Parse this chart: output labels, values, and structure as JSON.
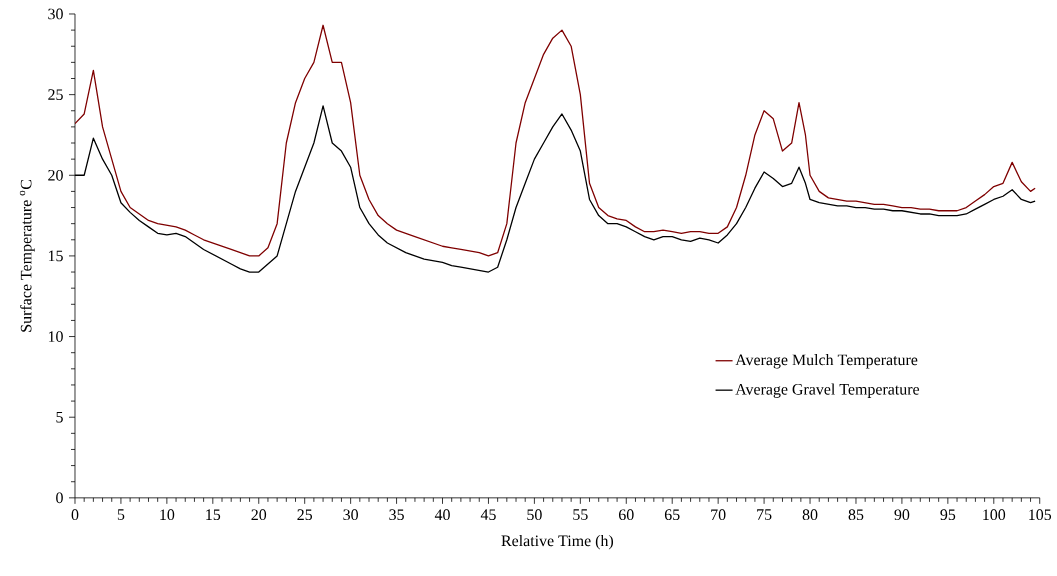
{
  "chart_data": {
    "type": "line",
    "xlabel": "Relative Time (h)",
    "ylabel": "Surface Temperature $^{o}$C",
    "x": [
      0,
      1,
      2,
      3,
      4,
      5,
      6,
      7,
      8,
      9,
      10,
      11,
      12,
      13,
      14,
      15,
      16,
      17,
      18,
      19,
      20,
      21,
      22,
      23,
      24,
      25,
      26,
      27,
      28,
      29,
      30,
      31,
      32,
      33,
      34,
      35,
      36,
      37,
      38,
      39,
      40,
      41,
      42,
      43,
      44,
      45,
      46,
      47,
      48,
      49,
      50,
      51,
      52,
      53,
      54,
      55,
      56,
      57,
      58,
      59,
      60,
      61,
      62,
      63,
      64,
      65,
      66,
      67,
      68,
      69,
      70,
      71,
      72,
      73,
      74,
      75,
      76,
      77,
      78,
      78.8,
      79.5,
      80,
      81,
      82,
      83,
      84,
      85,
      86,
      87,
      88,
      89,
      90,
      91,
      92,
      93,
      94,
      95,
      96,
      97,
      98,
      99,
      100,
      101,
      102,
      103,
      104,
      104.5
    ],
    "series": [
      {
        "name": "Average Mulch Temperature",
        "color": "#7f0000",
        "values": [
          23.2,
          23.8,
          26.5,
          23,
          21,
          19,
          18,
          17.6,
          17.2,
          17,
          16.9,
          16.8,
          16.6,
          16.3,
          16,
          15.8,
          15.6,
          15.4,
          15.2,
          15,
          15,
          15.5,
          17,
          22,
          24.5,
          26,
          27,
          29.3,
          27,
          27,
          24.5,
          20,
          18.5,
          17.5,
          17,
          16.6,
          16.4,
          16.2,
          16,
          15.8,
          15.6,
          15.5,
          15.4,
          15.3,
          15.2,
          15,
          15.2,
          17,
          22,
          24.5,
          26,
          27.5,
          28.5,
          29,
          28,
          25,
          19.5,
          18,
          17.5,
          17.3,
          17.2,
          16.8,
          16.5,
          16.5,
          16.6,
          16.5,
          16.4,
          16.5,
          16.5,
          16.4,
          16.4,
          16.8,
          18,
          20,
          22.5,
          24,
          23.5,
          21.5,
          22,
          24.5,
          22.5,
          20,
          19,
          18.6,
          18.5,
          18.4,
          18.4,
          18.3,
          18.2,
          18.2,
          18.1,
          18,
          18,
          17.9,
          17.9,
          17.8,
          17.8,
          17.8,
          18,
          18.4,
          18.8,
          19.3,
          19.5,
          20.8,
          19.6,
          19,
          19.2
        ]
      },
      {
        "name": "Average Gravel Temperature",
        "color": "#000000",
        "values": [
          20,
          20,
          22.3,
          21,
          20,
          18.3,
          17.7,
          17.2,
          16.8,
          16.4,
          16.3,
          16.4,
          16.2,
          15.8,
          15.4,
          15.1,
          14.8,
          14.5,
          14.2,
          14,
          14,
          14.5,
          15,
          17,
          19,
          20.5,
          22,
          24.3,
          22,
          21.5,
          20.5,
          18,
          17,
          16.3,
          15.8,
          15.5,
          15.2,
          15,
          14.8,
          14.7,
          14.6,
          14.4,
          14.3,
          14.2,
          14.1,
          14,
          14.3,
          16,
          18,
          19.5,
          21,
          22,
          23,
          23.8,
          22.8,
          21.5,
          18.5,
          17.5,
          17,
          17,
          16.8,
          16.5,
          16.2,
          16,
          16.2,
          16.2,
          16,
          15.9,
          16.1,
          16,
          15.8,
          16.3,
          17,
          18,
          19.2,
          20.2,
          19.8,
          19.3,
          19.5,
          20.5,
          19.5,
          18.5,
          18.3,
          18.2,
          18.1,
          18.1,
          18,
          18,
          17.9,
          17.9,
          17.8,
          17.8,
          17.7,
          17.6,
          17.6,
          17.5,
          17.5,
          17.5,
          17.6,
          17.9,
          18.2,
          18.5,
          18.7,
          19.1,
          18.5,
          18.3,
          18.4
        ]
      }
    ],
    "xlim": [
      0,
      105
    ],
    "ylim": [
      0,
      30
    ],
    "xticks": [
      0,
      5,
      10,
      15,
      20,
      25,
      30,
      35,
      40,
      45,
      50,
      55,
      60,
      65,
      70,
      75,
      80,
      85,
      90,
      95,
      100,
      105
    ],
    "yticks": [
      0,
      5,
      10,
      15,
      20,
      25,
      30
    ],
    "legend": "right",
    "grid": false,
    "marker": "none",
    "line_style": "solid"
  }
}
